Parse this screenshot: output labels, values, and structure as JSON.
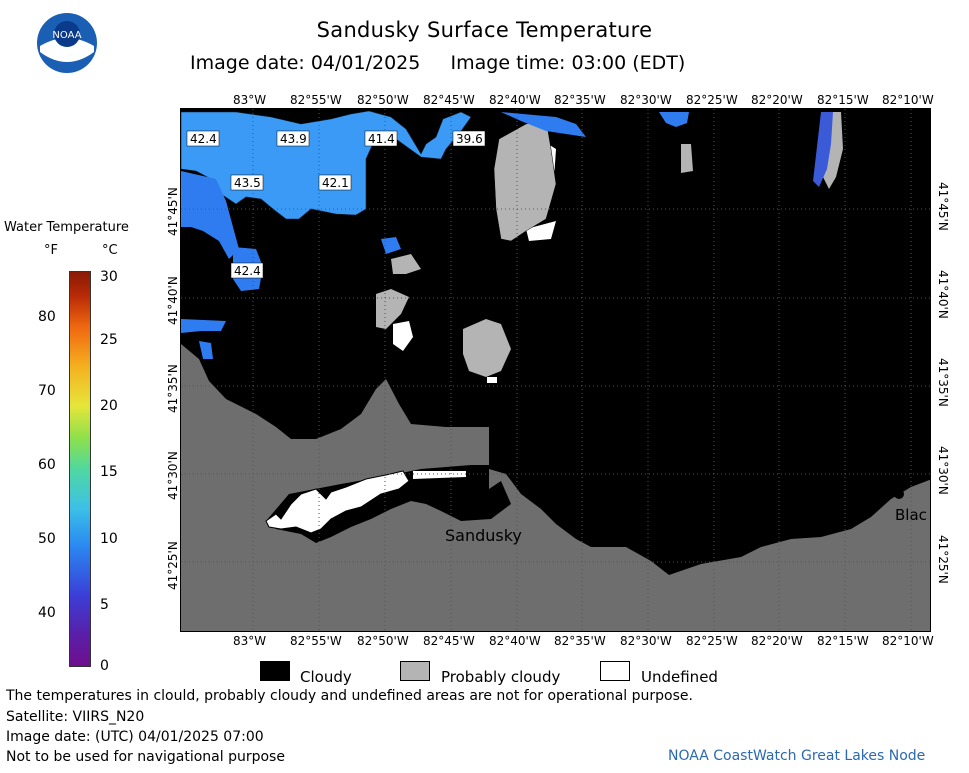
{
  "header": {
    "title": "Sandusky Surface Temperature",
    "subtitle": "Image date: 04/01/2025     Image time: 03:00 (EDT)",
    "logo_text": "NOAA"
  },
  "colorbar": {
    "title": "Water Temperature",
    "unit_f": "°F",
    "unit_c": "°C",
    "f_ticks": [
      "80",
      "70",
      "60",
      "50",
      "40"
    ],
    "c_ticks": [
      "30",
      "25",
      "20",
      "15",
      "10",
      "5",
      "0"
    ]
  },
  "map": {
    "lon_labels": [
      "83°W",
      "82°55'W",
      "82°50'W",
      "82°45'W",
      "82°40'W",
      "82°35'W",
      "82°30'W",
      "82°25'W",
      "82°20'W",
      "82°15'W",
      "82°10'W"
    ],
    "lat_labels": [
      "41°45'N",
      "41°40'N",
      "41°35'N",
      "41°30'N",
      "41°25'N"
    ],
    "place_labels": {
      "sandusky": "Sandusky",
      "blac": "Blac"
    },
    "temp_labels": [
      "42.4",
      "43.9",
      "41.4",
      "39.6",
      "43.5",
      "42.1",
      "42.4"
    ],
    "colors": {
      "cloud": "#000000",
      "land": "#6e6e6e",
      "probably_cloudy": "#b4b4b4",
      "water_cold": "#2f7cf0",
      "water_light": "#3b9af5",
      "undefined": "#ffffff"
    }
  },
  "legend": {
    "cloudy": "Cloudy",
    "probably_cloudy": "Probably cloudy",
    "undefined": "Undefined"
  },
  "footer": {
    "note": "The temperatures in clould, probably cloudy and undefined areas are not for operational purpose.",
    "satellite": "Satellite: VIIRS_N20",
    "image_date_utc": "Image date: (UTC) 04/01/2025  07:00",
    "nav_warning": "Not to be used for navigational purpose",
    "credit": "NOAA CoastWatch Great Lakes Node"
  }
}
